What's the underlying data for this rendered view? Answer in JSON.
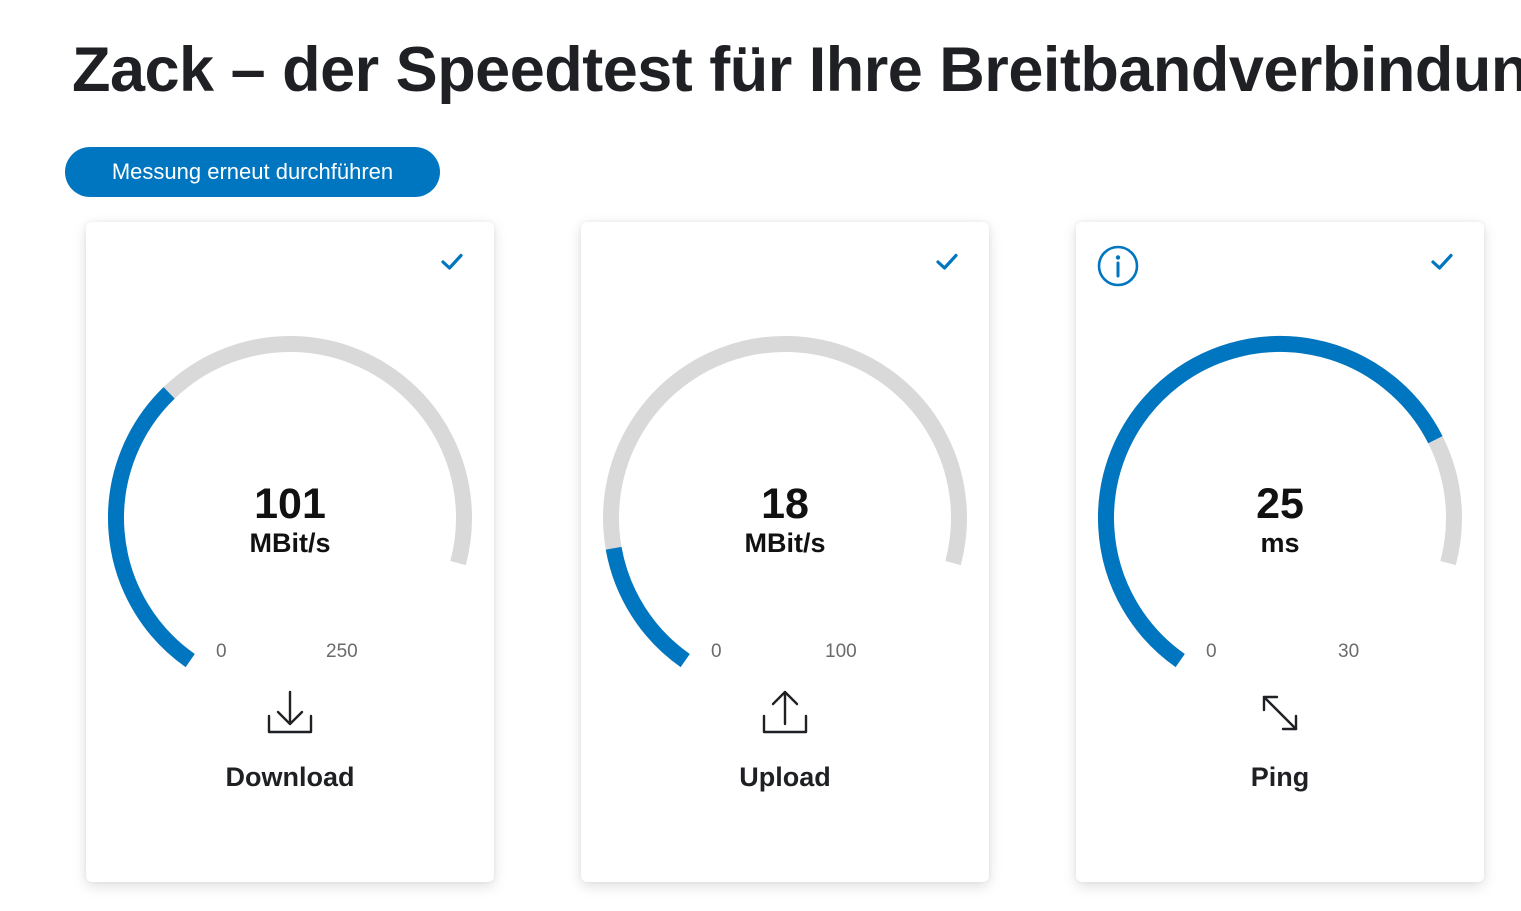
{
  "page": {
    "title": "Zack – der Speedtest für Ihre Breitbandverbindung",
    "rerun_label": "Messung erneut durchführen"
  },
  "colors": {
    "accent": "#0076c0",
    "gauge_track": "#d9d9d9",
    "text": "#1f2024"
  },
  "cards": [
    {
      "id": "download",
      "label": "Download",
      "value": "101",
      "unit": "MBit/s",
      "scale_min": "0",
      "scale_max": "250",
      "fill_fraction": 0.404,
      "icon": "download-icon",
      "completed": true,
      "has_info": false
    },
    {
      "id": "upload",
      "label": "Upload",
      "value": "18",
      "unit": "MBit/s",
      "scale_min": "0",
      "scale_max": "100",
      "fill_fraction": 0.18,
      "icon": "upload-icon",
      "completed": true,
      "has_info": false
    },
    {
      "id": "ping",
      "label": "Ping",
      "value": "25",
      "unit": "ms",
      "scale_min": "0",
      "scale_max": "30",
      "fill_fraction": 0.833,
      "icon": "ping-icon",
      "completed": true,
      "has_info": true
    }
  ]
}
